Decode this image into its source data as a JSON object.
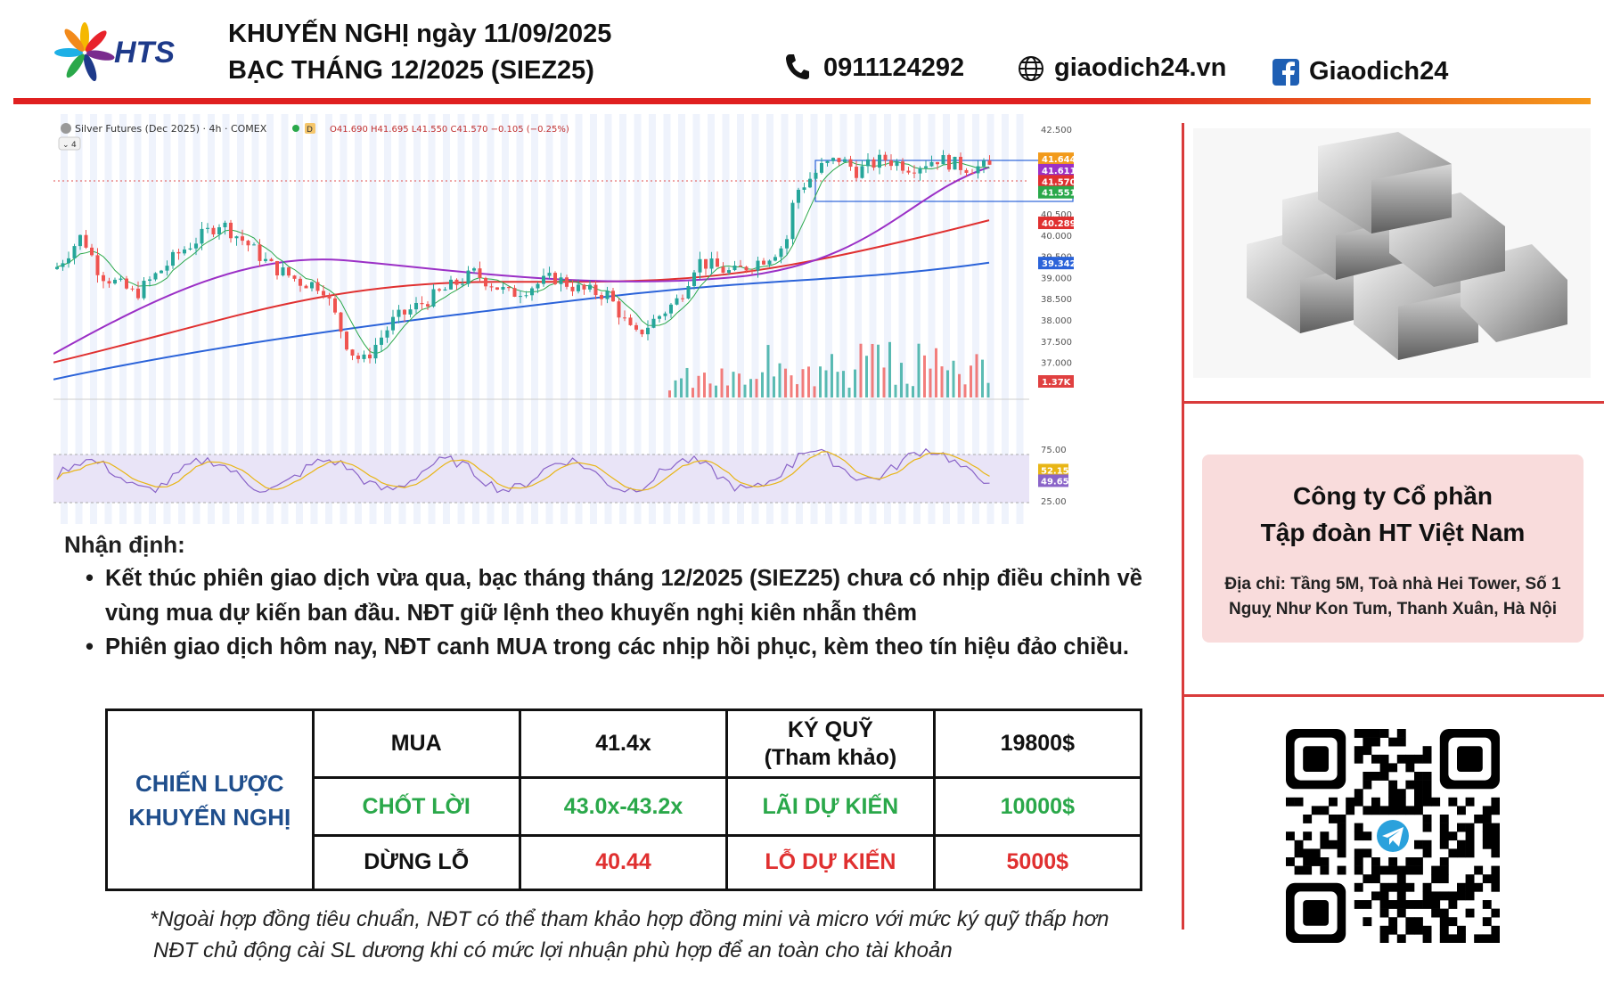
{
  "brand": {
    "logo_text": "HTS"
  },
  "header": {
    "title_line1": "KHUYẾN NGHỊ ngày 11/09/2025",
    "title_line2": "BẠC THÁNG 12/2025 (SIEZ25)",
    "phone": "0911124292",
    "website": "giaodich24.vn",
    "facebook": "Giaodich24"
  },
  "chart_meta": {
    "symbol_title": "Silver Futures (Dec 2025) · 4h · COMEX",
    "ohlc": "O41.690 H41.695 L41.550 C41.570 −0.105 (−0.25%)",
    "indicator_count": "4",
    "interval_badge": "D",
    "price_ticks": [
      "42.500",
      "41.000",
      "40.500",
      "40.000",
      "39.500",
      "39.000",
      "38.500",
      "38.000",
      "37.500",
      "37.000",
      "36.500"
    ],
    "osc_ticks": [
      "75.00",
      "25.00"
    ],
    "price_tags": [
      {
        "label": "41.644",
        "color": "#f29a1b"
      },
      {
        "label": "41.611",
        "color": "#9b30c6"
      },
      {
        "label": "41.570",
        "color": "#e03030"
      },
      {
        "label": "41.551",
        "color": "#2aa84a"
      },
      {
        "label": "40.289",
        "color": "#e03030"
      },
      {
        "label": "39.342",
        "color": "#2b63d9"
      },
      {
        "label": "1.37K",
        "color": "#e04040"
      }
    ],
    "osc_tags": [
      {
        "label": "52.15",
        "color": "#e8b516"
      },
      {
        "label": "49.65",
        "color": "#8a64c8"
      }
    ]
  },
  "analysis": {
    "heading": "Nhận định:",
    "bullets": [
      "Kết thúc phiên giao dịch vừa qua, bạc tháng tháng 12/2025 (SIEZ25) chưa có nhịp điều chỉnh về vùng mua dự kiến ban đầu. NĐT giữ lệnh theo khuyến nghị kiên nhẫn thêm",
      " Phiên giao dịch hôm nay, NĐT canh MUA trong các nhịp hồi phục, kèm theo tín hiệu đảo chiều."
    ],
    "bullet_char": "•"
  },
  "strategy": {
    "label_line1": "CHIẾN LƯỢC",
    "label_line2": "KHUYẾN NGHỊ",
    "rows": [
      {
        "action": "MUA",
        "price": "41.4x",
        "metric": "KÝ QUỸ",
        "metric_sub": "(Tham khảo)",
        "value": "19800$"
      },
      {
        "action": "CHỐT LỜI",
        "price": "43.0x-43.2x",
        "metric": "LÃI DỰ KIẾN",
        "metric_sub": "",
        "value": "10000$"
      },
      {
        "action": "DỪNG LỖ",
        "price": "40.44",
        "metric": "LỖ DỰ KIẾN",
        "metric_sub": "",
        "value": "5000$"
      }
    ]
  },
  "notes": {
    "line1": "*Ngoài hợp đồng tiêu chuẩn, NĐT có thể tham khảo hợp đồng mini và micro với mức ký quỹ thấp hơn",
    "line2": "NĐT chủ động cài SL dương khi có mức lợi nhuận phù hợp để an toàn cho tài khoản"
  },
  "company": {
    "name_line1": "Công ty Cổ phần",
    "name_line2": "Tập đoàn HT Việt Nam",
    "address_line1": "Địa chỉ: Tầng 5M, Toà nhà Hei Tower, Số 1",
    "address_line2": "Nguỵ Như Kon Tum, Thanh Xuân, Hà Nội"
  },
  "colors": {
    "brand_red": "#e02020",
    "brand_orange": "#f59a1b",
    "header_blue": "#1e3a8a",
    "strategy_blue": "#1f4e8c",
    "profit_green": "#2aa84a",
    "loss_red": "#e03030",
    "company_box": "#f9dcdc"
  },
  "icons": [
    "hts-logo-icon",
    "phone-icon",
    "globe-icon",
    "facebook-icon",
    "silver-bars-image",
    "qr-code-icon",
    "telegram-icon"
  ]
}
